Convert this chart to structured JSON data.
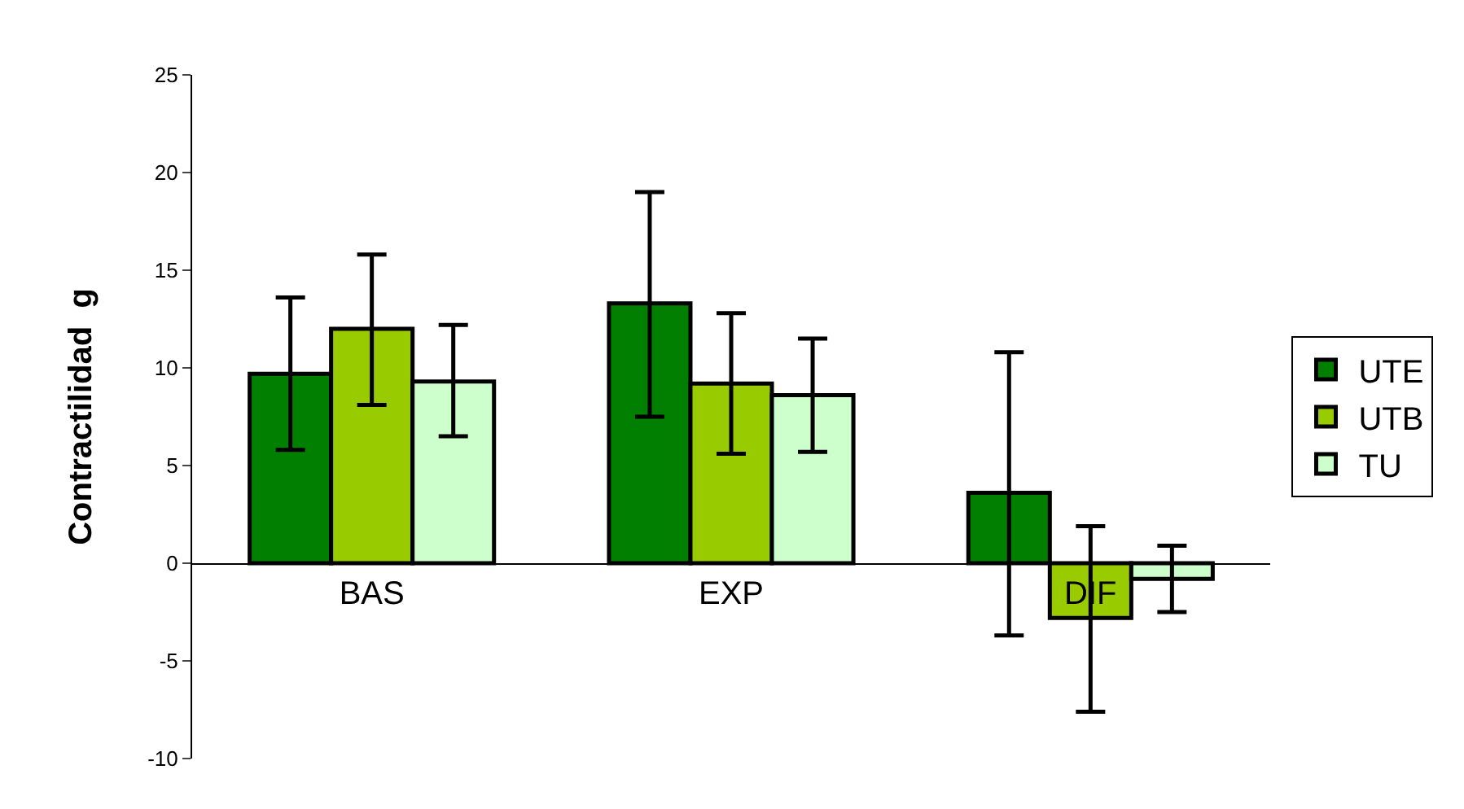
{
  "chart_data": {
    "type": "bar",
    "ylabel": "Contractilidad  g",
    "categories": [
      "BAS",
      "EXP",
      "DIF"
    ],
    "series": [
      {
        "name": "UTE",
        "color": "#007f00",
        "values": [
          9.7,
          13.3,
          3.6
        ],
        "errors": [
          [
            5.8,
            13.6
          ],
          [
            7.5,
            19.0
          ],
          [
            -3.7,
            10.8
          ]
        ]
      },
      {
        "name": "UTB",
        "color": "#99cc00",
        "values": [
          12.0,
          9.2,
          -2.8
        ],
        "errors": [
          [
            8.1,
            15.8
          ],
          [
            5.6,
            12.8
          ],
          [
            -7.6,
            1.9
          ]
        ]
      },
      {
        "name": "TU",
        "color": "#ccffcc",
        "values": [
          9.3,
          8.6,
          -0.8
        ],
        "errors": [
          [
            6.5,
            12.2
          ],
          [
            5.7,
            11.5
          ],
          [
            -2.5,
            0.9
          ]
        ]
      }
    ],
    "ylim": [
      -10,
      25
    ],
    "yticks": [
      -10,
      -5,
      0,
      5,
      10,
      15,
      20,
      25
    ],
    "legend": "right"
  }
}
